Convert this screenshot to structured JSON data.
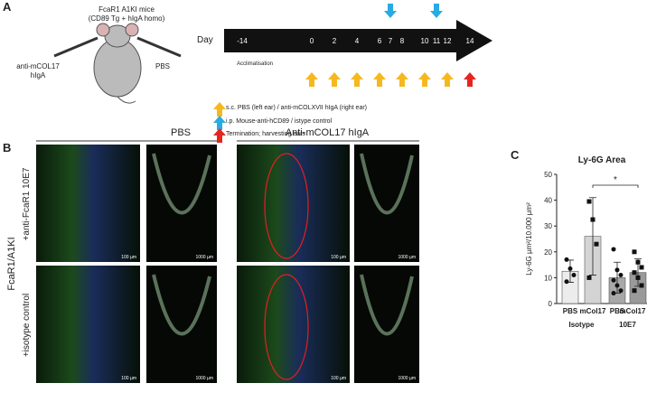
{
  "panel_a": {
    "letter": "A",
    "mouse_title": "FcaR1 A1KI mice",
    "mouse_subtitle": "(CD89 Tg + hIgA homo)",
    "left_label": [
      "anti-mCOL17",
      "hIgA"
    ],
    "right_label": "PBS",
    "day_label": "Day",
    "days": [
      "-14",
      "0",
      "2",
      "4",
      "6",
      "7",
      "8",
      "10",
      "11",
      "12",
      "14"
    ],
    "acclimatisation": "Acclimatisation",
    "legend": [
      "s.c. PBS (left ear) / anti-mCOLXVII hIgA (right ear)",
      "i.p.  Mouse-anti-hCD89 / istype control",
      "Termination; harvesting ears"
    ]
  },
  "panel_b": {
    "letter": "B",
    "col_headers": [
      "PBS",
      "Anti-mCOL17 hIgA"
    ],
    "row_group": "FcaR1/A1KI",
    "row_labels": [
      "+anti-FcaR1 10E7",
      "+isotype control"
    ],
    "scale_bars": [
      "100 µm",
      "1000 µm"
    ]
  },
  "panel_c": {
    "letter": "C"
  },
  "chart_data": {
    "type": "bar",
    "title": "Ly-6G Area",
    "y_label": "Ly-6G µm²/10.000 µm²",
    "categories": [
      "PBS",
      "mCol17",
      "PBS",
      "mCol17"
    ],
    "groups": [
      "Isotype",
      "10E7"
    ],
    "values": [
      12.5,
      26,
      10,
      12
    ],
    "errors": [
      4.3,
      15,
      6,
      5.3
    ],
    "colors": [
      "#ececec",
      "#d4d4d4",
      "#a8a8a8",
      "#9a9a9a"
    ],
    "markers": [
      "circle",
      "square",
      "circle",
      "square"
    ],
    "points": [
      [
        17,
        13.5,
        11,
        8.5
      ],
      [
        39.5,
        32.5,
        23,
        10
      ],
      [
        21,
        13,
        11,
        9,
        7,
        5,
        4
      ],
      [
        20,
        16,
        14,
        12,
        10,
        7,
        5
      ]
    ],
    "annotation": "*",
    "ylim": [
      0,
      50
    ],
    "yticks": [
      0,
      10,
      20,
      30,
      40,
      50
    ]
  }
}
